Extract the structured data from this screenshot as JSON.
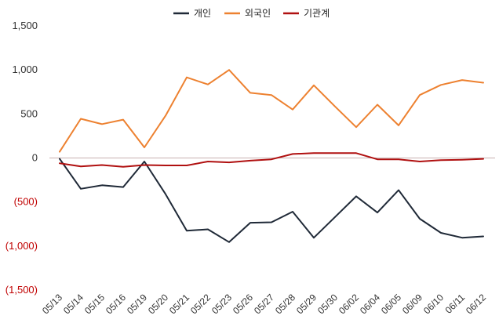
{
  "chart_data": {
    "type": "line",
    "categories": [
      "05/13",
      "05/14",
      "05/15",
      "05/16",
      "05/19",
      "05/20",
      "05/21",
      "05/22",
      "05/23",
      "05/26",
      "05/27",
      "05/28",
      "05/29",
      "05/30",
      "06/02",
      "06/04",
      "06/05",
      "06/09",
      "06/10",
      "06/11",
      "06/12"
    ],
    "series": [
      {
        "name": "개인",
        "color": "#1f2937",
        "values": [
          -10,
          -350,
          -310,
          -330,
          -40,
          -410,
          -825,
          -810,
          -955,
          -735,
          -730,
          -610,
          -905,
          -670,
          -435,
          -620,
          -365,
          -690,
          -850,
          -905,
          -890
        ]
      },
      {
        "name": "외국인",
        "color": "#ed8130",
        "values": [
          70,
          445,
          385,
          435,
          120,
          480,
          915,
          835,
          1000,
          740,
          715,
          550,
          825,
          585,
          350,
          605,
          370,
          715,
          830,
          885,
          855
        ]
      },
      {
        "name": "기관계",
        "color": "#b01010",
        "values": [
          -60,
          -95,
          -80,
          -100,
          -80,
          -85,
          -85,
          -40,
          -50,
          -30,
          -15,
          45,
          55,
          55,
          55,
          -15,
          -15,
          -40,
          -25,
          -20,
          -10
        ]
      }
    ],
    "y_ticks": [
      "1,500",
      "1,000",
      "500",
      "0",
      "(500)",
      "(1,000)",
      "(1,500)"
    ],
    "y_tick_values": [
      1500,
      1000,
      500,
      0,
      -500,
      -1000,
      -1500
    ],
    "ylim": [
      -1500,
      1500
    ],
    "negative_tick_color": "#c00000",
    "grid": false,
    "zero_line_color": "#c7b0b0",
    "legend_position": "top-center"
  }
}
